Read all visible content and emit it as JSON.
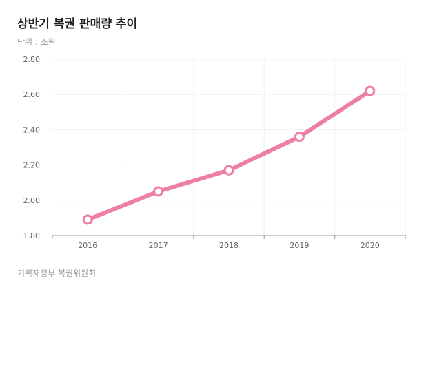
{
  "title": "상반기 복권 판매량 추이",
  "subtitle": "단위 : 조원",
  "source": "기획재정부 복권위원회",
  "colors": {
    "line": "#ec7fa2",
    "axis": "#999999",
    "grid": "#f1f1f1",
    "marker_fill": "#ffffff"
  },
  "chart_data": {
    "type": "line",
    "title": "상반기 복권 판매량 추이",
    "subtitle": "단위 : 조원",
    "categories": [
      "2016",
      "2017",
      "2018",
      "2019",
      "2020"
    ],
    "series": [
      {
        "values": [
          1.89,
          2.05,
          2.17,
          2.36,
          2.62
        ]
      }
    ],
    "ylim": [
      1.8,
      2.8
    ],
    "yticks": [
      "1.80",
      "2.00",
      "2.20",
      "2.40",
      "2.60",
      "2.80"
    ],
    "grid": true,
    "legend": "none"
  }
}
